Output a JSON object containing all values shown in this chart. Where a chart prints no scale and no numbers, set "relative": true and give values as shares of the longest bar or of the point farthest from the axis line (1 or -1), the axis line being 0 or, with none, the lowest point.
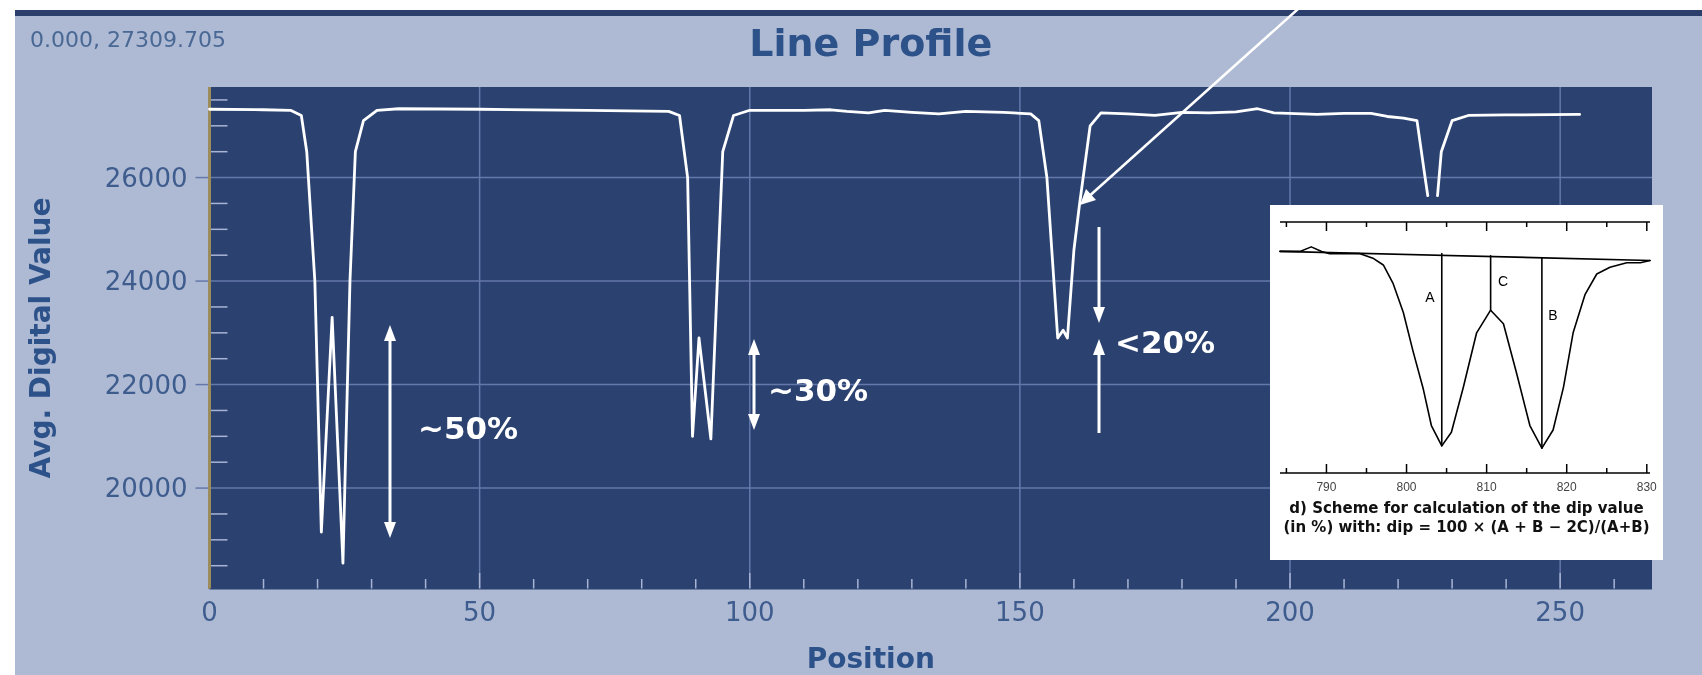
{
  "chart_data": [
    {
      "type": "line",
      "title": "Line Profile",
      "xlabel": "Position",
      "ylabel": "Avg. Digital Value",
      "series": [
        {
          "color": "#ffffff",
          "x": [
            0,
            10,
            15,
            17,
            18,
            19.5,
            20.7,
            22.7,
            24.7,
            26,
            27,
            28.5,
            31,
            35,
            50,
            70,
            85,
            87,
            88.5,
            89.4,
            90.6,
            92.8,
            94,
            95,
            97,
            100,
            110,
            115,
            118,
            122,
            125,
            130,
            135,
            140,
            147,
            152,
            153.5,
            155,
            157,
            158,
            158.8,
            160,
            161,
            163,
            165,
            170,
            175,
            180,
            185,
            190,
            194,
            197,
            205,
            210,
            215,
            218,
            221,
            223.5,
            225,
            225.5
          ],
          "values": [
            27320,
            27310,
            27300,
            27200,
            26500,
            24000,
            19150,
            23300,
            18550,
            24000,
            26500,
            27100,
            27300,
            27330,
            27320,
            27300,
            27280,
            27200,
            26000,
            21000,
            22900,
            20950,
            24000,
            26500,
            27200,
            27300,
            27300,
            27310,
            27280,
            27250,
            27300,
            27260,
            27230,
            27280,
            27260,
            27230,
            27100,
            26000,
            22900,
            23050,
            22900,
            24600,
            25450,
            27000,
            27250,
            27230,
            27200,
            27260,
            27250,
            27270,
            27330,
            27250,
            27220,
            27240,
            27240,
            27180,
            27150,
            27100,
            26000,
            25650
          ]
        },
        {
          "color": "#ffffff",
          "x": [
            227.3,
            228,
            230,
            233,
            240,
            253.6
          ],
          "values": [
            25650,
            26500,
            27100,
            27200,
            27210,
            27220
          ]
        }
      ],
      "xlim": [
        0,
        267
      ],
      "ylim": [
        18050,
        27750
      ],
      "xticks": [
        0,
        {
          "value": 10,
          "label": null
        },
        {
          "value": 20,
          "label": null
        },
        {
          "value": 30,
          "label": null
        },
        {
          "value": 40,
          "label": null
        },
        50,
        {
          "value": 60,
          "label": null
        },
        {
          "value": 70,
          "label": null
        },
        {
          "value": 80,
          "label": null
        },
        {
          "value": 90,
          "label": null
        },
        100,
        {
          "value": 110,
          "label": null
        },
        {
          "value": 120,
          "label": null
        },
        {
          "value": 130,
          "label": null
        },
        {
          "value": 140,
          "label": null
        },
        150,
        {
          "value": 160,
          "label": null
        },
        {
          "value": 170,
          "label": null
        },
        {
          "value": 180,
          "label": null
        },
        {
          "value": 190,
          "label": null
        },
        200,
        {
          "value": 210,
          "label": null
        },
        {
          "value": 220,
          "label": null
        },
        {
          "value": 230,
          "label": null
        },
        {
          "value": 240,
          "label": null
        },
        250,
        {
          "value": 260,
          "label": null
        }
      ],
      "yticks": [
        20000,
        22000,
        24000,
        26000
      ],
      "grid": true,
      "annotations": [
        "0.000, 27309.705",
        "~50%",
        "~30%",
        "<20%"
      ]
    },
    {
      "type": "line",
      "title": "d)  Scheme for calculation of the dip value (in %) with: dip = 100 × (A + B − 2C)/(A+B)",
      "relative": true,
      "xlim": [
        784.2,
        830.4
      ],
      "xticks": [
        {
          "value": 785,
          "label": null
        },
        790,
        {
          "value": 795,
          "label": null
        },
        800,
        {
          "value": 805,
          "label": null
        },
        810,
        {
          "value": 815,
          "label": null
        },
        820,
        {
          "value": 825,
          "label": null
        },
        830
      ],
      "series": [
        {
          "color": "#000000",
          "x": [
            784.2,
            786.7,
            788.1,
            789.4,
            790.4,
            794.2,
            795.8,
            797.1,
            798.3,
            799.6,
            800.8,
            802.1,
            803.1,
            804.4,
            805.6,
            807.1,
            808.75,
            810.5,
            812.1,
            813.75,
            815.4,
            816.9,
            818.3,
            819.6,
            820.8,
            822.3,
            823.75,
            825.4,
            827.5,
            829.2,
            830.4
          ],
          "values": [
            0.98,
            0.98,
            1,
            0.98,
            0.97,
            0.97,
            0.95,
            0.92,
            0.84,
            0.71,
            0.54,
            0.37,
            0.21,
            0.12,
            0.18,
            0.38,
            0.62,
            0.72,
            0.66,
            0.44,
            0.21,
            0.11,
            0.19,
            0.38,
            0.62,
            0.79,
            0.88,
            0.91,
            0.93,
            0.93,
            0.94
          ]
        },
        {
          "color": "#000000",
          "x": [
            784.2,
            830.4
          ],
          "values": [
            0.98,
            0.94
          ]
        },
        {
          "color": "#000000",
          "x": [
            804.4,
            804.4
          ],
          "values": [
            0.12,
            0.97
          ]
        },
        {
          "color": "#000000",
          "x": [
            810.5,
            810.5
          ],
          "values": [
            0.72,
            0.96
          ]
        },
        {
          "color": "#000000",
          "x": [
            816.9,
            816.9
          ],
          "values": [
            0.11,
            0.95
          ]
        }
      ],
      "annotations": [
        "A",
        "C",
        "B"
      ]
    }
  ]
}
